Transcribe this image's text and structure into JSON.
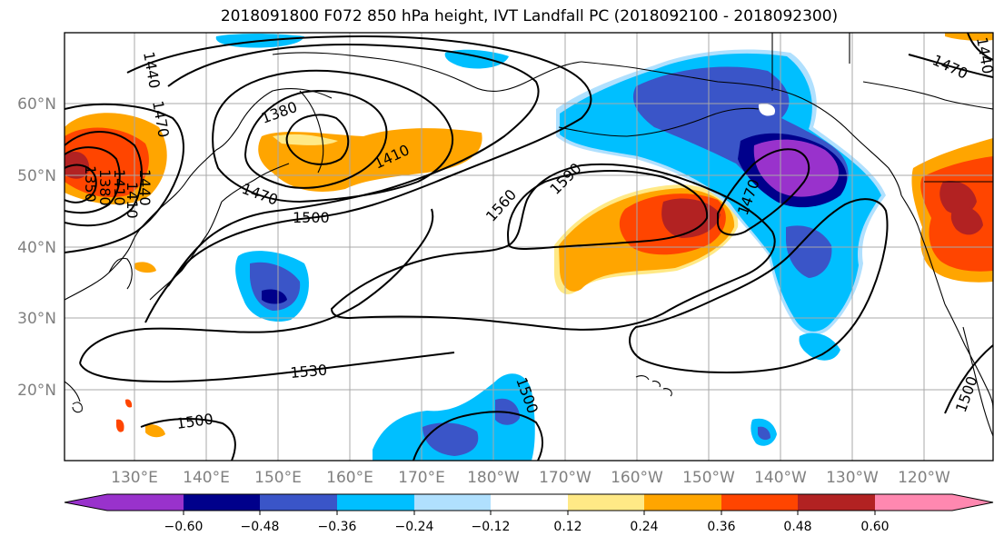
{
  "title": "2018091800 F072 850 hPa height, IVT Landfall PC (2018092100 - 2018092300)",
  "lat_labels": [
    "20°N",
    "30°N",
    "40°N",
    "50°N",
    "60°N"
  ],
  "lon_labels": [
    "130°E",
    "140°E",
    "150°E",
    "160°E",
    "170°E",
    "180°W",
    "170°W",
    "160°W",
    "150°W",
    "140°W",
    "130°W",
    "120°W"
  ],
  "contour_labels": [
    "1380",
    "1410",
    "1440",
    "1470",
    "1470",
    "1500",
    "1530",
    "1500",
    "1560",
    "1590",
    "1500",
    "1470",
    "1500",
    "1470",
    "1440",
    "1410",
    "1380",
    "1350",
    "1410",
    "1440"
  ],
  "colorbar": {
    "ticks": [
      "−0.60",
      "−0.48",
      "−0.36",
      "−0.24",
      "−0.12",
      "0.12",
      "0.24",
      "0.36",
      "0.48",
      "0.60"
    ],
    "colors": [
      "#9932cc",
      "#00008b",
      "#3a55c8",
      "#00bfff",
      "#b0e0fe",
      "#ffffff",
      "#ffe986",
      "#ffa500",
      "#ff4500",
      "#b22222",
      "#ff88b0"
    ]
  },
  "fill_colors": {
    "purple": "#9932cc",
    "navy": "#00008b",
    "blue": "#3a55c8",
    "cyan": "#00bfff",
    "light_blue": "#b0e0fe",
    "yellow": "#ffe986",
    "orange": "#ffa500",
    "red_orange": "#ff4500",
    "dark_red": "#b22222"
  }
}
